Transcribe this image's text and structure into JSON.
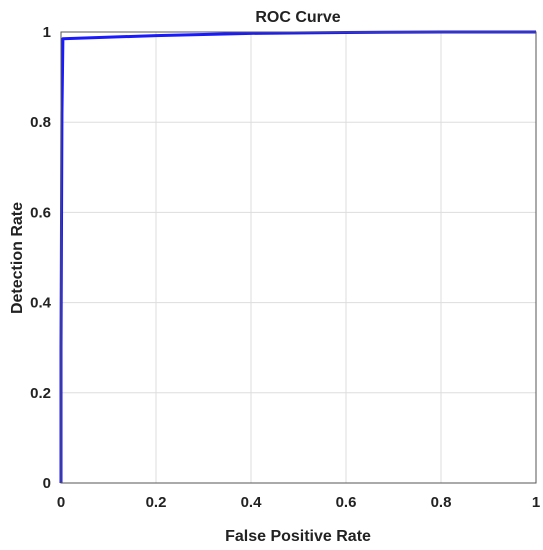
{
  "chart_data": {
    "type": "line",
    "title": "ROC Curve",
    "xlabel": "False Positive Rate",
    "ylabel": "Detection Rate",
    "xlim": [
      0,
      1
    ],
    "ylim": [
      0,
      1
    ],
    "grid": true,
    "x_ticks": [
      "0",
      "0.2",
      "0.4",
      "0.6",
      "0.8",
      "1"
    ],
    "y_ticks": [
      "0",
      "0.2",
      "0.4",
      "0.6",
      "0.8",
      "1"
    ],
    "series": [
      {
        "color": "#1a1aff",
        "x": [
          0,
          0,
          0.002,
          0.004,
          0.2,
          0.4,
          0.6,
          0.8,
          1.0
        ],
        "y": [
          0,
          0.3,
          0.82,
          0.985,
          0.992,
          0.997,
          0.999,
          1.0,
          1.0
        ]
      }
    ]
  }
}
